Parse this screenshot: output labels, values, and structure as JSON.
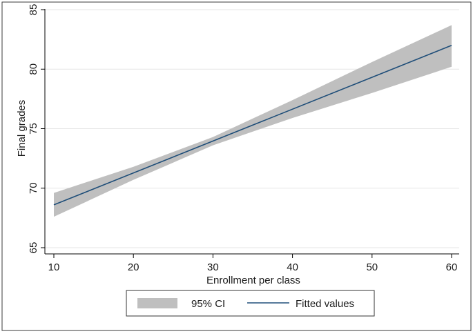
{
  "chart_data": {
    "type": "line",
    "title": "",
    "xlabel": "Enrollment per class",
    "ylabel": "Final grades",
    "xlim": [
      10,
      60
    ],
    "ylim": [
      65,
      85
    ],
    "xticks": [
      10,
      20,
      30,
      40,
      50,
      60
    ],
    "yticks": [
      65,
      70,
      75,
      80,
      85
    ],
    "grid": true,
    "legend_position": "bottom",
    "series": [
      {
        "name": "95% CI",
        "kind": "band",
        "color": "#bfbfbf",
        "x": [
          10,
          20,
          30,
          40,
          50,
          60
        ],
        "lower": [
          67.6,
          70.7,
          73.6,
          75.9,
          78.0,
          80.2
        ],
        "upper": [
          69.6,
          71.8,
          74.3,
          77.4,
          80.6,
          83.7
        ]
      },
      {
        "name": "Fitted values",
        "kind": "line",
        "color": "#1f4e79",
        "x": [
          10,
          60
        ],
        "y": [
          68.6,
          82.0
        ]
      }
    ]
  }
}
